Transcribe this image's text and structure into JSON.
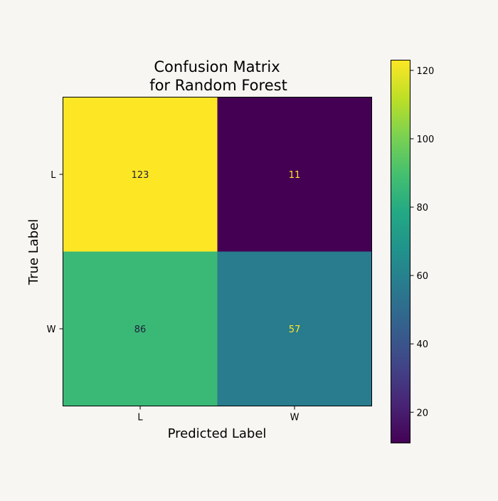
{
  "chart_data": {
    "type": "heatmap",
    "title_line1": "Confusion Matrix",
    "title_line2": "for Random Forest",
    "xlabel": "Predicted Label",
    "ylabel": "True Label",
    "x_categories": [
      "L",
      "W"
    ],
    "y_categories": [
      "L",
      "W"
    ],
    "matrix": [
      [
        123,
        11
      ],
      [
        86,
        57
      ]
    ],
    "colormap": "viridis",
    "colorbar": {
      "range": [
        11,
        123
      ],
      "ticks": [
        20,
        40,
        60,
        80,
        100,
        120
      ]
    },
    "grid": false
  }
}
